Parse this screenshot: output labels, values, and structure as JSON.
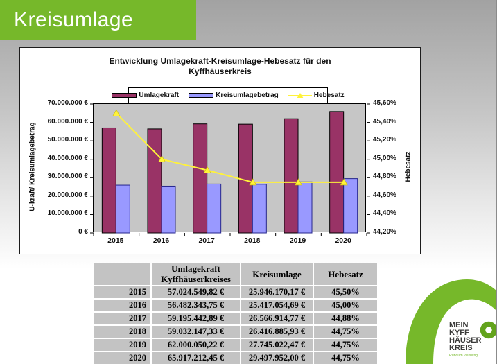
{
  "header": {
    "title": "Kreisumlage",
    "color": "#76B82A"
  },
  "chart": {
    "title": "Entwicklung Umlagekraft-Kreisumlage-Hebesatz für den\nKyffhäuserkreis",
    "left_axis_title": "U-kraft/ Kreisumlagebetrag",
    "right_axis_title": "Hebesatz"
  },
  "chart_data": {
    "type": "bar",
    "subtype": "bar+line, dual axis",
    "title": "Entwicklung Umlagekraft-Kreisumlage-Hebesatz für den Kyffhäuserkreis",
    "categories": [
      "2015",
      "2016",
      "2017",
      "2018",
      "2019",
      "2020"
    ],
    "series": [
      {
        "name": "Umlagekraft",
        "type": "bar",
        "axis": "left",
        "color": "#993366",
        "values": [
          57024549.82,
          56482343.75,
          59195442.89,
          59032147.33,
          62000050.22,
          65917212.45
        ]
      },
      {
        "name": "Kreisumlagebetrag",
        "type": "bar",
        "axis": "left",
        "color": "#9999FF",
        "values": [
          25946170.17,
          25417054.69,
          26566914.77,
          26416885.93,
          27745022.47,
          29497952.0
        ]
      },
      {
        "name": "Hebesatz",
        "type": "line",
        "axis": "right",
        "color": "#FFF23A",
        "values": [
          45.5,
          45.0,
          44.88,
          44.75,
          44.75,
          44.75
        ]
      }
    ],
    "left_axis": {
      "label": "U-kraft/ Kreisumlagebetrag",
      "min": 0,
      "max": 70000000,
      "step": 10000000,
      "tick_labels": [
        "70.000.000 €",
        "60.000.000 €",
        "50.000.000 €",
        "40.000.000 €",
        "30.000.000 €",
        "20.000.000 €",
        "10.000.000 €",
        "0 €"
      ]
    },
    "right_axis": {
      "label": "Hebesatz",
      "min": 44.2,
      "max": 45.6,
      "step": 0.2,
      "tick_labels": [
        "45,60%",
        "45,40%",
        "45,20%",
        "45,00%",
        "44,80%",
        "44,60%",
        "44,40%",
        "44,20%"
      ]
    },
    "grid": false,
    "legend_position": "top",
    "plot_background": "#c6c6c6"
  },
  "table": {
    "headers": [
      "",
      "Umlagekraft\nKyffhäuserkreises",
      "Kreisumlage",
      "Hebesatz"
    ],
    "rows": [
      [
        "2015",
        "57.024.549,82 €",
        "25.946.170,17 €",
        "45,50%"
      ],
      [
        "2016",
        "56.482.343,75 €",
        "25.417.054,69 €",
        "45,00%"
      ],
      [
        "2017",
        "59.195.442,89 €",
        "26.566.914,77 €",
        "44,88%"
      ],
      [
        "2018",
        "59.032.147,33 €",
        "26.416.885,93 €",
        "44,75%"
      ],
      [
        "2019",
        "62.000.050,22 €",
        "27.745.022,47 €",
        "44,75%"
      ],
      [
        "2020",
        "65.917.212,45 €",
        "29.497.952,00 €",
        "44,75%"
      ]
    ]
  },
  "logo": {
    "lines": [
      "MEIN",
      "KYFF",
      "HÄUSER",
      "KREIS"
    ],
    "tagline": "Rundum vielseitig.",
    "green": "#76B82A",
    "text_color": "#3a3a39"
  }
}
